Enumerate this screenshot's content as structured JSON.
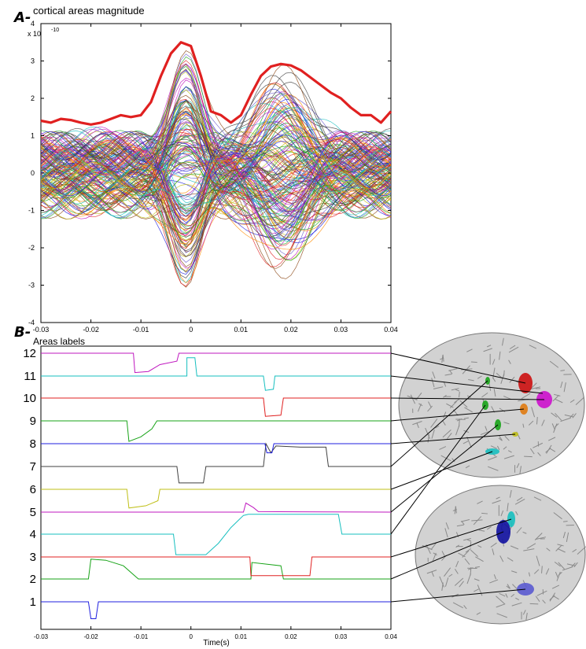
{
  "panel_a": {
    "letter": "A-",
    "title": "cortical areas magnitude",
    "exponent_base": "x 10",
    "exponent_power": "-10"
  },
  "panel_b": {
    "letter": "B-",
    "ylabel": "Areas labels",
    "xlabel": "Time(s)"
  },
  "colors": {
    "envelope": "#e02020",
    "trace_palette": [
      "#1f1fdf",
      "#17a317",
      "#e02020",
      "#17bfbf",
      "#bf17bf",
      "#bfbf17",
      "#404040",
      "#ff8c00",
      "#8b4513",
      "#6a5acd"
    ],
    "brain_surface": "#d2d2d2",
    "brain_groove": "#8a8a8a"
  },
  "chart_data": [
    {
      "type": "line",
      "title": "cortical areas magnitude",
      "x_ticks": [
        "-0.03",
        "-0.02",
        "-0.01",
        "0",
        "0.01",
        "0.02",
        "0.03",
        "0.04"
      ],
      "y_ticks": [
        "-4",
        "-3",
        "-2",
        "-1",
        "0",
        "1",
        "2",
        "3",
        "4"
      ],
      "xlim": [
        -0.03,
        0.04
      ],
      "ylim": [
        -4,
        4
      ],
      "y_scale_note": "x 10^-10",
      "grid": false,
      "envelope": {
        "x": [
          -0.03,
          -0.028,
          -0.026,
          -0.024,
          -0.022,
          -0.02,
          -0.018,
          -0.016,
          -0.014,
          -0.012,
          -0.01,
          -0.008,
          -0.006,
          -0.004,
          -0.002,
          0.0,
          0.002,
          0.004,
          0.006,
          0.008,
          0.01,
          0.012,
          0.014,
          0.016,
          0.018,
          0.02,
          0.022,
          0.024,
          0.026,
          0.028,
          0.03,
          0.032,
          0.034,
          0.036,
          0.038,
          0.04
        ],
        "y": [
          1.4,
          1.35,
          1.45,
          1.42,
          1.35,
          1.3,
          1.35,
          1.45,
          1.55,
          1.5,
          1.55,
          1.9,
          2.6,
          3.2,
          3.5,
          3.4,
          2.6,
          1.65,
          1.55,
          1.35,
          1.55,
          2.1,
          2.6,
          2.85,
          2.92,
          2.88,
          2.75,
          2.55,
          2.35,
          2.15,
          2.0,
          1.75,
          1.55,
          1.55,
          1.35,
          1.65
        ]
      }
    },
    {
      "type": "line",
      "x_ticks": [
        "-0.03",
        "-0.02",
        "-0.01",
        "0",
        "0.01",
        "0.02",
        "0.03",
        "0.04"
      ],
      "y_ticks": [
        "1",
        "2",
        "3",
        "4",
        "5",
        "6",
        "7",
        "8",
        "9",
        "10",
        "11",
        "12"
      ],
      "xlim": [
        -0.03,
        0.04
      ],
      "xlabel": "Time(s)",
      "ylabel": "Areas labels",
      "series": [
        {
          "label": "1",
          "color": "#1f1fdf",
          "points": [
            [
              -0.03,
              1
            ],
            [
              -0.0205,
              1
            ],
            [
              -0.02,
              0.25
            ],
            [
              -0.019,
              0.25
            ],
            [
              -0.0185,
              1
            ],
            [
              0.04,
              1
            ]
          ]
        },
        {
          "label": "2",
          "color": "#17a317",
          "points": [
            [
              -0.03,
              2
            ],
            [
              -0.0205,
              2
            ],
            [
              -0.02,
              2.9
            ],
            [
              -0.017,
              2.85
            ],
            [
              -0.0135,
              2.6
            ],
            [
              -0.011,
              2.1
            ],
            [
              -0.0105,
              2
            ],
            [
              0.012,
              2
            ],
            [
              0.0122,
              2.75
            ],
            [
              0.018,
              2.6
            ],
            [
              0.0185,
              2
            ],
            [
              0.024,
              2
            ],
            [
              0.04,
              2
            ]
          ]
        },
        {
          "label": "3",
          "color": "#e02020",
          "points": [
            [
              -0.03,
              3
            ],
            [
              0.0118,
              3
            ],
            [
              0.012,
              2.15
            ],
            [
              0.0238,
              2.15
            ],
            [
              0.0242,
              3
            ],
            [
              0.04,
              3
            ]
          ]
        },
        {
          "label": "4",
          "color": "#17bfbf",
          "points": [
            [
              -0.03,
              4
            ],
            [
              -0.0035,
              4
            ],
            [
              -0.003,
              3.1
            ],
            [
              0.003,
              3.1
            ],
            [
              0.0055,
              3.6
            ],
            [
              0.008,
              4.3
            ],
            [
              0.0105,
              4.85
            ],
            [
              0.0115,
              4.9
            ],
            [
              0.0295,
              4.9
            ],
            [
              0.0302,
              4
            ],
            [
              0.04,
              4
            ]
          ]
        },
        {
          "label": "5",
          "color": "#bf17bf",
          "points": [
            [
              -0.03,
              5
            ],
            [
              0.0105,
              5
            ],
            [
              0.011,
              5.4
            ],
            [
              0.0125,
              5.2
            ],
            [
              0.0135,
              5.02
            ],
            [
              0.04,
              5
            ]
          ]
        },
        {
          "label": "6",
          "color": "#bfbf17",
          "points": [
            [
              -0.03,
              6
            ],
            [
              -0.0128,
              6
            ],
            [
              -0.0124,
              5.18
            ],
            [
              -0.009,
              5.28
            ],
            [
              -0.0066,
              5.5
            ],
            [
              -0.0062,
              6
            ],
            [
              0.04,
              6
            ]
          ]
        },
        {
          "label": "7",
          "color": "#404040",
          "points": [
            [
              -0.03,
              7
            ],
            [
              -0.0028,
              7
            ],
            [
              -0.0024,
              6.28
            ],
            [
              0.0025,
              6.28
            ],
            [
              0.003,
              7
            ],
            [
              0.0145,
              7
            ],
            [
              0.015,
              8.0
            ],
            [
              0.016,
              7.6
            ],
            [
              0.017,
              7.9
            ],
            [
              0.022,
              7.85
            ],
            [
              0.027,
              7.85
            ],
            [
              0.0275,
              7
            ],
            [
              0.04,
              7
            ]
          ]
        },
        {
          "label": "8",
          "color": "#1f1fdf",
          "points": [
            [
              -0.03,
              8
            ],
            [
              0.0148,
              8
            ],
            [
              0.0152,
              7.6
            ],
            [
              0.0162,
              7.6
            ],
            [
              0.0166,
              8
            ],
            [
              0.04,
              8
            ]
          ]
        },
        {
          "label": "9",
          "color": "#17a317",
          "points": [
            [
              -0.03,
              9
            ],
            [
              -0.0128,
              9
            ],
            [
              -0.0124,
              8.1
            ],
            [
              -0.01,
              8.3
            ],
            [
              -0.0078,
              8.65
            ],
            [
              -0.0068,
              9
            ],
            [
              0.04,
              9
            ]
          ]
        },
        {
          "label": "10",
          "color": "#e02020",
          "points": [
            [
              -0.03,
              10
            ],
            [
              0.0145,
              10
            ],
            [
              0.0149,
              9.2
            ],
            [
              0.018,
              9.25
            ],
            [
              0.0185,
              10
            ],
            [
              0.04,
              10
            ]
          ]
        },
        {
          "label": "11",
          "color": "#17bfbf",
          "points": [
            [
              -0.03,
              11
            ],
            [
              -0.0008,
              11
            ],
            [
              -0.0008,
              11.8
            ],
            [
              0.0008,
              11.8
            ],
            [
              0.0012,
              11
            ],
            [
              0.0145,
              11
            ],
            [
              0.0149,
              10.35
            ],
            [
              0.0165,
              10.4
            ],
            [
              0.0168,
              11
            ],
            [
              0.04,
              11
            ]
          ]
        },
        {
          "label": "12",
          "color": "#bf17bf",
          "points": [
            [
              -0.03,
              12
            ],
            [
              -0.0115,
              12
            ],
            [
              -0.0112,
              11.15
            ],
            [
              -0.0085,
              11.2
            ],
            [
              -0.0062,
              11.5
            ],
            [
              -0.0028,
              11.65
            ],
            [
              -0.0024,
              12
            ],
            [
              0.04,
              12
            ]
          ]
        }
      ]
    }
  ]
}
